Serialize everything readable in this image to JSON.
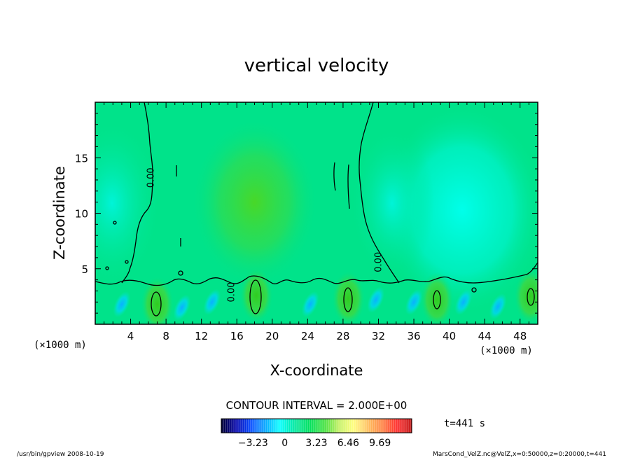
{
  "chart_data": {
    "type": "heatmap",
    "title": "vertical velocity",
    "xlabel": "X-coordinate",
    "ylabel": "Z-coordinate",
    "x_unit_left": "(×1000 m)",
    "x_unit_right": "(×1000 m)",
    "xlim": [
      0,
      50
    ],
    "ylim": [
      0,
      20
    ],
    "xticks": [
      4,
      8,
      12,
      16,
      20,
      24,
      28,
      32,
      36,
      40,
      44,
      48
    ],
    "yticks": [
      5,
      10,
      15
    ],
    "contour_interval": "CONTOUR INTERVAL = 2.000E+00",
    "contour_labels": [
      {
        "text": "0.00",
        "x": 6.6,
        "z": 13.2
      },
      {
        "text": "0.00",
        "x": 15.7,
        "z": 2.9
      },
      {
        "text": "0.00",
        "x": 32.3,
        "z": 5.6
      }
    ],
    "colorbar": {
      "ticks": [
        "−3.23",
        "0",
        "3.23",
        "6.46",
        "9.69"
      ],
      "range": [
        -6.46,
        12.92
      ],
      "palette": [
        "#000030",
        "#0000aa",
        "#0a4cff",
        "#0aa8ff",
        "#00ffff",
        "#00e8a0",
        "#00e060",
        "#40e040",
        "#c0f060",
        "#ffff80",
        "#ffc060",
        "#ff8040",
        "#ff3030",
        "#c01010"
      ]
    },
    "time_label": "t=441 s",
    "features": {
      "updraft_cores": [
        {
          "x": 7.0,
          "z": 1.8,
          "w": 3.5
        },
        {
          "x": 18.2,
          "z": 2.6,
          "w": 4.0
        },
        {
          "x": 28.6,
          "z": 2.3,
          "w": 3.0
        },
        {
          "x": 38.6,
          "z": 2.2,
          "w": 2.5
        },
        {
          "x": 49.2,
          "z": 2.5,
          "w": 2.2
        }
      ],
      "upper_updraft": {
        "x": 18,
        "z": 11,
        "w": 2.2
      },
      "downdraft_cores": [
        {
          "x": 3.0,
          "z": 1.8
        },
        {
          "x": 9.8,
          "z": 1.5
        },
        {
          "x": 13.2,
          "z": 2.0
        },
        {
          "x": 24.3,
          "z": 1.8
        },
        {
          "x": 31.7,
          "z": 2.2
        },
        {
          "x": 36.0,
          "z": 2.0
        },
        {
          "x": 41.6,
          "z": 2.0
        },
        {
          "x": 45.5,
          "z": 1.6
        }
      ]
    }
  },
  "footer": {
    "left": "/usr/bin/gpview   2008-10-19",
    "right": "MarsCond_VelZ.nc@VelZ,x=0:50000,z=0:20000,t=441"
  }
}
